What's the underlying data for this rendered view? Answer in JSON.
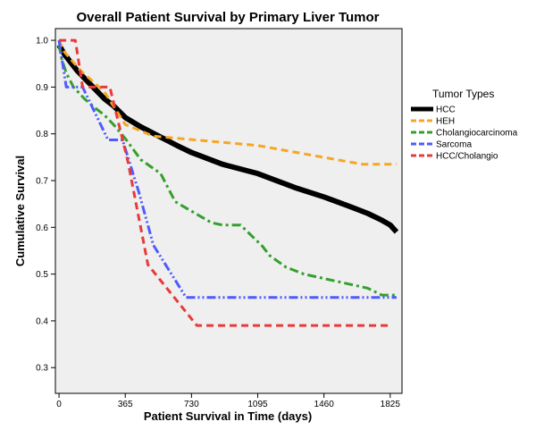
{
  "chart_data": {
    "type": "line",
    "title": "Overall Patient Survival by Primary Liver Tumor",
    "xlabel": "Patient Survival in Time (days)",
    "ylabel": "Cumulative Survival",
    "xlim": [
      -20,
      1890
    ],
    "ylim": [
      0.245,
      1.025
    ],
    "xticks": [
      0,
      365,
      730,
      1095,
      1460,
      1825
    ],
    "yticks": [
      0.3,
      0.4,
      0.5,
      0.6,
      0.7,
      0.8,
      0.9,
      1.0
    ],
    "ytick_labels": [
      "0.3",
      "0.4",
      "0.5",
      "0.6",
      "0.7",
      "0.8",
      "0.9",
      "1.0"
    ],
    "grid": false,
    "background": "#efefef",
    "legend": {
      "title": "Tumor Types",
      "position": "right"
    },
    "series": [
      {
        "name": "HCC",
        "color": "#000000",
        "style": "solid-thick",
        "x": [
          0,
          30,
          60,
          100,
          150,
          200,
          250,
          300,
          365,
          450,
          550,
          650,
          730,
          900,
          1095,
          1300,
          1460,
          1600,
          1700,
          1780,
          1825,
          1860
        ],
        "y": [
          0.99,
          0.97,
          0.955,
          0.935,
          0.915,
          0.895,
          0.875,
          0.86,
          0.835,
          0.815,
          0.795,
          0.775,
          0.76,
          0.735,
          0.715,
          0.685,
          0.665,
          0.645,
          0.63,
          0.615,
          0.605,
          0.59
        ]
      },
      {
        "name": "HEH",
        "color": "#f5a623",
        "style": "dashed",
        "x": [
          0,
          30,
          120,
          250,
          365,
          520,
          1095,
          1670,
          1860
        ],
        "y": [
          1.0,
          0.975,
          0.935,
          0.89,
          0.82,
          0.795,
          0.775,
          0.735,
          0.735
        ]
      },
      {
        "name": "Cholangiocarcinoma",
        "color": "#33a02c",
        "style": "dash-dot",
        "x": [
          0,
          15,
          40,
          80,
          140,
          200,
          250,
          300,
          365,
          450,
          560,
          640,
          750,
          840,
          900,
          1000,
          1120,
          1160,
          1250,
          1350,
          1700,
          1780,
          1860
        ],
        "y": [
          0.99,
          0.96,
          0.93,
          0.9,
          0.875,
          0.855,
          0.84,
          0.82,
          0.79,
          0.745,
          0.715,
          0.655,
          0.63,
          0.61,
          0.605,
          0.605,
          0.56,
          0.54,
          0.515,
          0.5,
          0.47,
          0.455,
          0.455
        ]
      },
      {
        "name": "Sarcoma",
        "color": "#4f5bff",
        "style": "dash-dot-dot",
        "x": [
          0,
          40,
          130,
          270,
          350,
          440,
          520,
          700,
          1860
        ],
        "y": [
          1.0,
          0.9,
          0.9,
          0.787,
          0.787,
          0.675,
          0.562,
          0.45,
          0.45
        ]
      },
      {
        "name": "HCC/Cholangio",
        "color": "#e83a3a",
        "style": "dashed",
        "x": [
          0,
          90,
          130,
          280,
          380,
          490,
          760,
          1825
        ],
        "y": [
          1.0,
          1.0,
          0.9,
          0.9,
          0.74,
          0.52,
          0.39,
          0.39
        ]
      }
    ]
  }
}
